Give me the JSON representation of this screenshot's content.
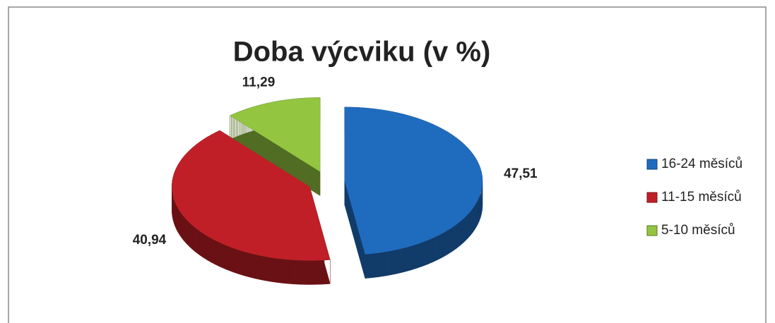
{
  "chart_data": {
    "type": "pie",
    "title": "Doba výcviku (v %)",
    "categories": [
      "16-24 měsíců",
      "11-15 měsíců",
      "5-10 měsíců"
    ],
    "values": [
      47.51,
      40.94,
      11.29
    ],
    "value_labels": [
      "47,51",
      "40,94",
      "11,29"
    ],
    "colors": [
      "#1f6cbf",
      "#c01f27",
      "#93c540"
    ],
    "legend": "right"
  }
}
